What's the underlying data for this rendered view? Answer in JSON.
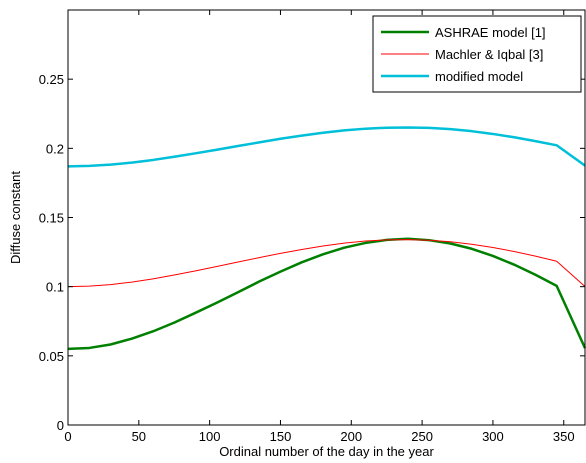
{
  "chart_data": {
    "type": "line",
    "title": "",
    "xlabel": "Ordinal number of the day in the year",
    "ylabel": "Diffuse constant",
    "xlim": [
      0,
      365
    ],
    "ylim": [
      0,
      0.3
    ],
    "xticks": [
      0,
      50,
      100,
      150,
      200,
      250,
      300,
      350
    ],
    "xtick_labels": [
      "0",
      "50",
      "100",
      "150",
      "200",
      "250",
      "300",
      "350"
    ],
    "yticks": [
      0,
      0.05,
      0.1,
      0.15,
      0.2,
      0.25
    ],
    "ytick_labels": [
      "0",
      "0.05",
      "0.1",
      "0.15",
      "0.2",
      "0.25"
    ],
    "grid": false,
    "legend_position": "top-right",
    "series": [
      {
        "name": "ASHRAE model [1]",
        "color": "#008000",
        "x": [
          0,
          15,
          30,
          45,
          60,
          75,
          90,
          105,
          120,
          135,
          150,
          165,
          180,
          195,
          210,
          225,
          240,
          255,
          270,
          285,
          300,
          315,
          330,
          345,
          365
        ],
        "y": [
          0.055,
          0.0557,
          0.0582,
          0.0624,
          0.0677,
          0.074,
          0.0811,
          0.0884,
          0.096,
          0.1037,
          0.1109,
          0.1176,
          0.1234,
          0.1282,
          0.1316,
          0.1338,
          0.1346,
          0.1336,
          0.1312,
          0.1274,
          0.1222,
          0.1159,
          0.1086,
          0.1006,
          0.0556
        ]
      },
      {
        "name": "Machler & Iqbal [3]",
        "color": "#ff0000",
        "x": [
          0,
          15,
          30,
          45,
          60,
          75,
          90,
          105,
          120,
          135,
          150,
          165,
          180,
          195,
          210,
          225,
          240,
          255,
          270,
          285,
          300,
          315,
          330,
          345,
          365
        ],
        "y": [
          0.1,
          0.1004,
          0.1015,
          0.1033,
          0.1056,
          0.1084,
          0.1114,
          0.1146,
          0.1178,
          0.121,
          0.1241,
          0.1269,
          0.1294,
          0.1315,
          0.133,
          0.1338,
          0.134,
          0.1336,
          0.1325,
          0.1307,
          0.1283,
          0.1254,
          0.1221,
          0.1184,
          0.1001
        ]
      },
      {
        "name": "modified model",
        "color": "#00bfd8",
        "x": [
          0,
          15,
          30,
          45,
          60,
          75,
          90,
          105,
          120,
          135,
          150,
          165,
          180,
          195,
          210,
          225,
          240,
          255,
          270,
          285,
          300,
          315,
          330,
          345,
          365
        ],
        "y": [
          0.187,
          0.1873,
          0.1882,
          0.1897,
          0.1916,
          0.1939,
          0.1964,
          0.199,
          0.2017,
          0.2043,
          0.2069,
          0.2092,
          0.2113,
          0.213,
          0.2142,
          0.2149,
          0.2151,
          0.2148,
          0.2139,
          0.2124,
          0.2104,
          0.208,
          0.2052,
          0.2022,
          0.1875
        ]
      }
    ]
  }
}
